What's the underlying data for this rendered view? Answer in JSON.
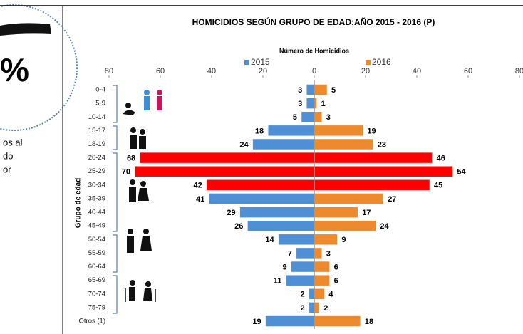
{
  "side_panel": {
    "symbol": "%",
    "lines": [
      "os al",
      "do",
      "or"
    ]
  },
  "chart_data": {
    "type": "pyramid",
    "title": "HOMICIDIOS SEGÚN GRUPO DE EDAD:AÑO 2015 - 2016 (P)",
    "subtitle": "Número de Homicidios",
    "y_label": "Grupo de edad",
    "categories": [
      "0-4",
      "5-9",
      "10-14",
      "15-17",
      "18-19",
      "20-24",
      "25-29",
      "30-34",
      "35-39",
      "40-44",
      "45-49",
      "50-54",
      "55-59",
      "60-64",
      "65-69",
      "70-74",
      "75-79",
      "Otros (1)"
    ],
    "series": [
      {
        "name": "2015",
        "side": "left",
        "color": "#4f8fd6",
        "colors": [
          "#4f8fd6",
          "#4f8fd6",
          "#4f8fd6",
          "#4f8fd6",
          "#4f8fd6",
          "#ff0000",
          "#ff0000",
          "#ff0000",
          "#4f8fd6",
          "#4f8fd6",
          "#4f8fd6",
          "#4f8fd6",
          "#4f8fd6",
          "#4f8fd6",
          "#4f8fd6",
          "#4f8fd6",
          "#4f8fd6",
          "#4f8fd6"
        ],
        "values": [
          3,
          3,
          5,
          18,
          24,
          68,
          70,
          42,
          41,
          29,
          26,
          14,
          7,
          9,
          11,
          2,
          2,
          19
        ]
      },
      {
        "name": "2016",
        "side": "right",
        "color": "#ee8a2e",
        "colors": [
          "#ee8a2e",
          "#ee8a2e",
          "#ee8a2e",
          "#ee8a2e",
          "#ee8a2e",
          "#ff0000",
          "#ff0000",
          "#ff0000",
          "#ee8a2e",
          "#ee8a2e",
          "#ee8a2e",
          "#ee8a2e",
          "#ee8a2e",
          "#ee8a2e",
          "#ee8a2e",
          "#ee8a2e",
          "#ee8a2e",
          "#ee8a2e"
        ],
        "values": [
          5,
          1,
          3,
          19,
          23,
          46,
          54,
          45,
          27,
          17,
          24,
          9,
          3,
          6,
          6,
          4,
          2,
          18
        ]
      }
    ],
    "xlim": [
      -80,
      80
    ],
    "xticks": [
      {
        "value": -80,
        "label": "80"
      },
      {
        "value": -60,
        "label": "60"
      },
      {
        "value": -40,
        "label": "40"
      },
      {
        "value": -20,
        "label": "20"
      },
      0,
      20,
      40,
      60,
      80
    ]
  }
}
